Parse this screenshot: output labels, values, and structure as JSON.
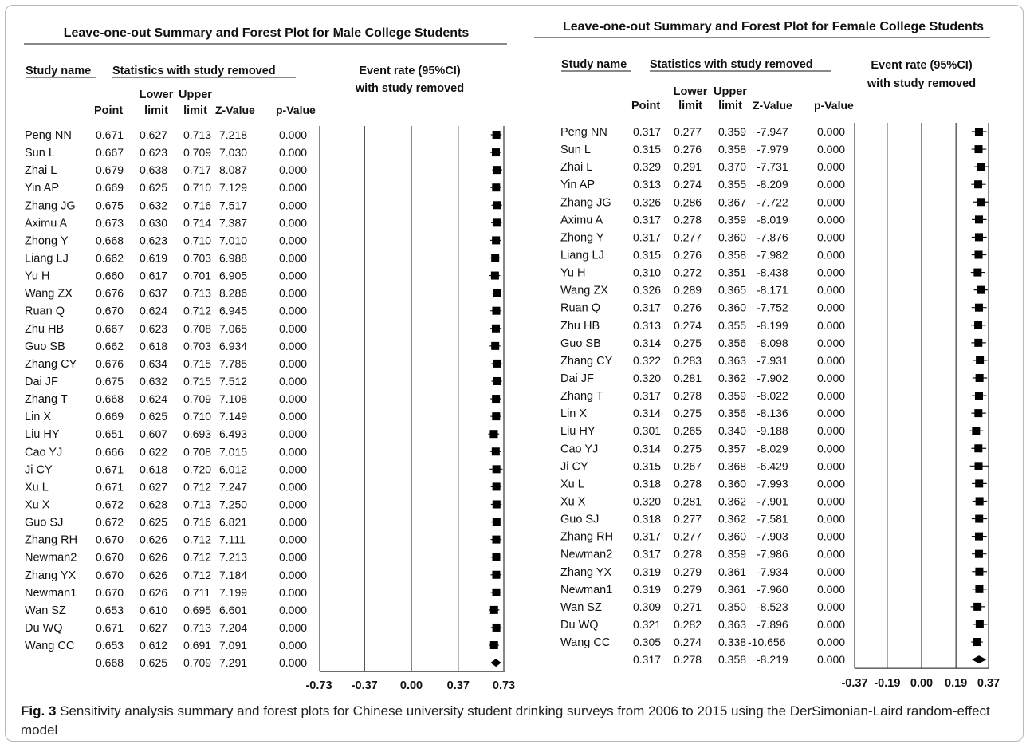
{
  "caption": {
    "label": "Fig. 3",
    "text": "Sensitivity analysis summary and forest plots for Chinese university student drinking surveys from 2006 to 2015 using the DerSimonian-Laird random-effect model"
  },
  "chart_data": [
    {
      "type": "forest",
      "title": "Leave-one-out Summary and Forest Plot for Male College Students",
      "headers": {
        "study_name": "Study name",
        "stats_group": "Statistics with study removed",
        "point": "Point",
        "lower": [
          "Lower",
          "limit"
        ],
        "upper": [
          "Upper",
          "limit"
        ],
        "z": "Z-Value",
        "p": "p-Value",
        "plot_title": [
          "Event rate (95%CI)",
          "with study removed"
        ]
      },
      "xticks": [
        "-0.73",
        "-0.37",
        "0.00",
        "0.37",
        "0.73"
      ],
      "xlim": [
        -0.73,
        0.73
      ],
      "rows": [
        [
          "Peng NN",
          "0.671",
          "0.627",
          "0.713",
          "7.218",
          "0.000"
        ],
        [
          "Sun L",
          "0.667",
          "0.623",
          "0.709",
          "7.030",
          "0.000"
        ],
        [
          "Zhai L",
          "0.679",
          "0.638",
          "0.717",
          "8.087",
          "0.000"
        ],
        [
          "Yin AP",
          "0.669",
          "0.625",
          "0.710",
          "7.129",
          "0.000"
        ],
        [
          "Zhang JG",
          "0.675",
          "0.632",
          "0.716",
          "7.517",
          "0.000"
        ],
        [
          "Aximu A",
          "0.673",
          "0.630",
          "0.714",
          "7.387",
          "0.000"
        ],
        [
          "Zhong Y",
          "0.668",
          "0.623",
          "0.710",
          "7.010",
          "0.000"
        ],
        [
          "Liang LJ",
          "0.662",
          "0.619",
          "0.703",
          "6.988",
          "0.000"
        ],
        [
          "Yu H",
          "0.660",
          "0.617",
          "0.701",
          "6.905",
          "0.000"
        ],
        [
          "Wang ZX",
          "0.676",
          "0.637",
          "0.713",
          "8.286",
          "0.000"
        ],
        [
          "Ruan Q",
          "0.670",
          "0.624",
          "0.712",
          "6.945",
          "0.000"
        ],
        [
          "Zhu HB",
          "0.667",
          "0.623",
          "0.708",
          "7.065",
          "0.000"
        ],
        [
          "Guo SB",
          "0.662",
          "0.618",
          "0.703",
          "6.934",
          "0.000"
        ],
        [
          "Zhang CY",
          "0.676",
          "0.634",
          "0.715",
          "7.785",
          "0.000"
        ],
        [
          "Dai JF",
          "0.675",
          "0.632",
          "0.715",
          "7.512",
          "0.000"
        ],
        [
          "Zhang T",
          "0.668",
          "0.624",
          "0.709",
          "7.108",
          "0.000"
        ],
        [
          "Lin X",
          "0.669",
          "0.625",
          "0.710",
          "7.149",
          "0.000"
        ],
        [
          "Liu HY",
          "0.651",
          "0.607",
          "0.693",
          "6.493",
          "0.000"
        ],
        [
          "Cao YJ",
          "0.666",
          "0.622",
          "0.708",
          "7.015",
          "0.000"
        ],
        [
          "Ji CY",
          "0.671",
          "0.618",
          "0.720",
          "6.012",
          "0.000"
        ],
        [
          "Xu L",
          "0.671",
          "0.627",
          "0.712",
          "7.247",
          "0.000"
        ],
        [
          "Xu X",
          "0.672",
          "0.628",
          "0.713",
          "7.250",
          "0.000"
        ],
        [
          "Guo SJ",
          "0.672",
          "0.625",
          "0.716",
          "6.821",
          "0.000"
        ],
        [
          "Zhang RH",
          "0.670",
          "0.626",
          "0.712",
          "7.111",
          "0.000"
        ],
        [
          "Newman2",
          "0.670",
          "0.626",
          "0.712",
          "7.213",
          "0.000"
        ],
        [
          "Zhang YX",
          "0.670",
          "0.626",
          "0.712",
          "7.184",
          "0.000"
        ],
        [
          "Newman1",
          "0.670",
          "0.626",
          "0.711",
          "7.199",
          "0.000"
        ],
        [
          "Wan SZ",
          "0.653",
          "0.610",
          "0.695",
          "6.601",
          "0.000"
        ],
        [
          "Du WQ",
          "0.671",
          "0.627",
          "0.713",
          "7.204",
          "0.000"
        ],
        [
          "Wang CC",
          "0.653",
          "0.612",
          "0.691",
          "7.091",
          "0.000"
        ]
      ],
      "summary": [
        "",
        "0.668",
        "0.625",
        "0.709",
        "7.291",
        "0.000"
      ]
    },
    {
      "type": "forest",
      "title": "Leave-one-out Summary and Forest Plot for Female College Students",
      "headers": {
        "study_name": "Study name",
        "stats_group": "Statistics with study removed",
        "point": "Point",
        "lower": [
          "Lower",
          "limit"
        ],
        "upper": [
          "Upper",
          "limit"
        ],
        "z": "Z-Value",
        "p": "p-Value",
        "plot_title": [
          "Event rate (95%CI)",
          "with study removed"
        ]
      },
      "xticks": [
        "-0.37",
        "-0.19",
        "0.00",
        "0.19",
        "0.37"
      ],
      "xlim": [
        -0.37,
        0.37
      ],
      "rows": [
        [
          "Peng NN",
          "0.317",
          "0.277",
          "0.359",
          "-7.947",
          "0.000"
        ],
        [
          "Sun L",
          "0.315",
          "0.276",
          "0.358",
          "-7.979",
          "0.000"
        ],
        [
          "Zhai L",
          "0.329",
          "0.291",
          "0.370",
          "-7.731",
          "0.000"
        ],
        [
          "Yin AP",
          "0.313",
          "0.274",
          "0.355",
          "-8.209",
          "0.000"
        ],
        [
          "Zhang JG",
          "0.326",
          "0.286",
          "0.367",
          "-7.722",
          "0.000"
        ],
        [
          "Aximu A",
          "0.317",
          "0.278",
          "0.359",
          "-8.019",
          "0.000"
        ],
        [
          "Zhong Y",
          "0.317",
          "0.277",
          "0.360",
          "-7.876",
          "0.000"
        ],
        [
          "Liang LJ",
          "0.315",
          "0.276",
          "0.358",
          "-7.982",
          "0.000"
        ],
        [
          "Yu H",
          "0.310",
          "0.272",
          "0.351",
          "-8.438",
          "0.000"
        ],
        [
          "Wang ZX",
          "0.326",
          "0.289",
          "0.365",
          "-8.171",
          "0.000"
        ],
        [
          "Ruan Q",
          "0.317",
          "0.276",
          "0.360",
          "-7.752",
          "0.000"
        ],
        [
          "Zhu HB",
          "0.313",
          "0.274",
          "0.355",
          "-8.199",
          "0.000"
        ],
        [
          "Guo SB",
          "0.314",
          "0.275",
          "0.356",
          "-8.098",
          "0.000"
        ],
        [
          "Zhang CY",
          "0.322",
          "0.283",
          "0.363",
          "-7.931",
          "0.000"
        ],
        [
          "Dai JF",
          "0.320",
          "0.281",
          "0.362",
          "-7.902",
          "0.000"
        ],
        [
          "Zhang T",
          "0.317",
          "0.278",
          "0.359",
          "-8.022",
          "0.000"
        ],
        [
          "Lin X",
          "0.314",
          "0.275",
          "0.356",
          "-8.136",
          "0.000"
        ],
        [
          "Liu HY",
          "0.301",
          "0.265",
          "0.340",
          "-9.188",
          "0.000"
        ],
        [
          "Cao YJ",
          "0.314",
          "0.275",
          "0.357",
          "-8.029",
          "0.000"
        ],
        [
          "Ji CY",
          "0.315",
          "0.267",
          "0.368",
          "-6.429",
          "0.000"
        ],
        [
          "Xu L",
          "0.318",
          "0.278",
          "0.360",
          "-7.993",
          "0.000"
        ],
        [
          "Xu X",
          "0.320",
          "0.281",
          "0.362",
          "-7.901",
          "0.000"
        ],
        [
          "Guo SJ",
          "0.318",
          "0.277",
          "0.362",
          "-7.581",
          "0.000"
        ],
        [
          "Zhang RH",
          "0.317",
          "0.277",
          "0.360",
          "-7.903",
          "0.000"
        ],
        [
          "Newman2",
          "0.317",
          "0.278",
          "0.359",
          "-7.986",
          "0.000"
        ],
        [
          "Zhang YX",
          "0.319",
          "0.279",
          "0.361",
          "-7.934",
          "0.000"
        ],
        [
          "Newman1",
          "0.319",
          "0.279",
          "0.361",
          "-7.960",
          "0.000"
        ],
        [
          "Wan SZ",
          "0.309",
          "0.271",
          "0.350",
          "-8.523",
          "0.000"
        ],
        [
          "Du WQ",
          "0.321",
          "0.282",
          "0.363",
          "-7.896",
          "0.000"
        ],
        [
          "Wang CC",
          "0.305",
          "0.274",
          "0.338",
          "-10.656",
          "0.000"
        ]
      ],
      "summary": [
        "",
        "0.317",
        "0.278",
        "0.358",
        "-8.219",
        "0.000"
      ]
    }
  ]
}
